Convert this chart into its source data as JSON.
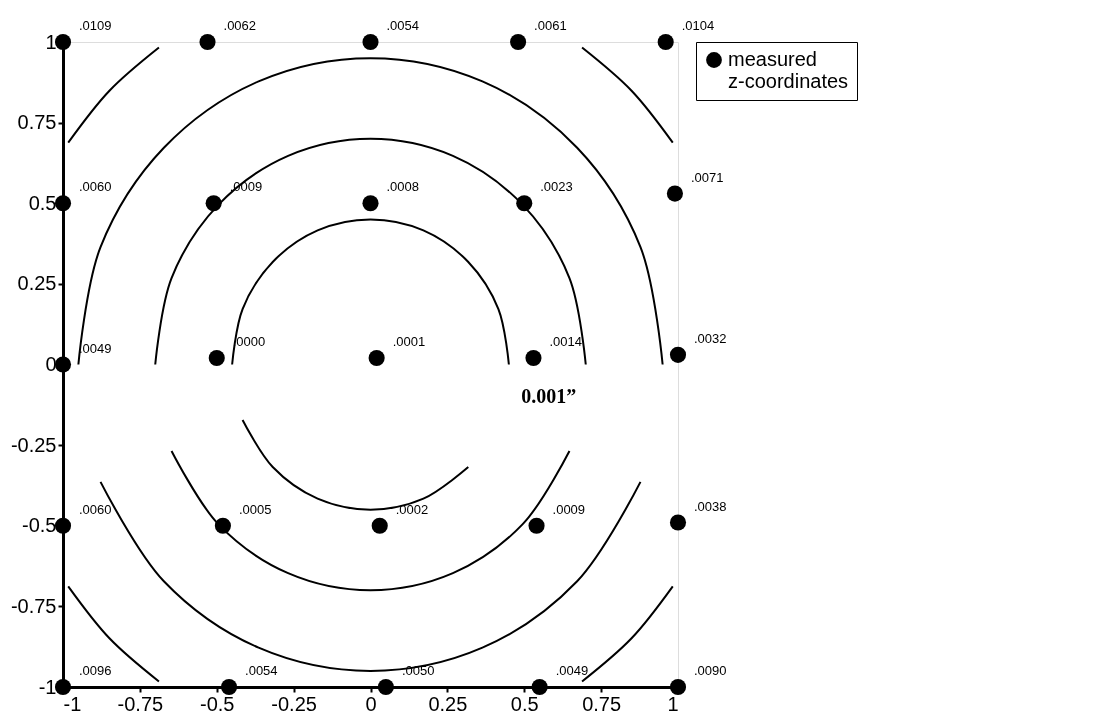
{
  "chart_data": {
    "type": "scatter",
    "legend": "right",
    "grid": false,
    "xlim": [
      -1,
      1
    ],
    "ylim": [
      -1,
      1
    ],
    "xticks": [
      -1,
      -0.75,
      -0.5,
      -0.25,
      0,
      0.25,
      0.5,
      0.75,
      1
    ],
    "yticks": [
      -1,
      -0.75,
      -0.5,
      -0.25,
      0,
      0.25,
      0.5,
      0.75,
      1
    ],
    "annotations": [
      "0.001”",
      {
        "text": ".0109",
        "x": -1,
        "y": 1
      },
      {
        "text": ".0062",
        "x": -0.53,
        "y": 1
      },
      {
        "text": ".0054",
        "x": 0,
        "y": 1
      },
      {
        "text": ".0061",
        "x": 0.48,
        "y": 1
      },
      {
        "text": ".0104",
        "x": 0.96,
        "y": 1
      },
      {
        "text": ".0060",
        "x": -1,
        "y": 0.5
      },
      {
        "text": ".0009",
        "x": -0.51,
        "y": 0.5
      },
      {
        "text": ".0008",
        "x": 0,
        "y": 0.5
      },
      {
        "text": ".0023",
        "x": 0.5,
        "y": 0.5
      },
      {
        "text": ".0071",
        "x": 0.99,
        "y": 0.53
      },
      {
        "text": ".0049",
        "x": -1,
        "y": 0
      },
      {
        "text": ".0000",
        "x": -0.5,
        "y": 0.02
      },
      {
        "text": ".0001",
        "x": 0.02,
        "y": 0.02
      },
      {
        "text": ".0014",
        "x": 0.53,
        "y": 0.02
      },
      {
        "text": ".0032",
        "x": 1,
        "y": 0.03
      },
      {
        "text": ".0060",
        "x": -1,
        "y": -0.5
      },
      {
        "text": ".0005",
        "x": -0.48,
        "y": -0.5
      },
      {
        "text": ".0002",
        "x": 0.03,
        "y": -0.5
      },
      {
        "text": ".0009",
        "x": 0.54,
        "y": -0.5
      },
      {
        "text": ".0038",
        "x": 1,
        "y": -0.49
      },
      {
        "text": ".0096",
        "x": -1,
        "y": -1
      },
      {
        "text": ".0054",
        "x": -0.46,
        "y": -1
      },
      {
        "text": ".0050",
        "x": 0.05,
        "y": -1
      },
      {
        "text": ".0049",
        "x": 0.55,
        "y": -1
      },
      {
        "text": ".0090",
        "x": 1,
        "y": -1
      }
    ],
    "series": [
      {
        "name": "measured z-coordinates",
        "marker": "circle",
        "color": "#000000",
        "x": [
          -1,
          -0.53,
          0,
          0.48,
          0.96,
          -1,
          -0.51,
          0,
          0.5,
          0.99,
          -1,
          -0.5,
          0.02,
          0.53,
          1,
          -1,
          -0.48,
          0.03,
          0.54,
          1,
          -1,
          -0.46,
          0.05,
          0.55,
          1
        ],
        "values": [
          1,
          1,
          1,
          1,
          1,
          0.5,
          0.5,
          0.5,
          0.5,
          0.53,
          0,
          0.02,
          0.02,
          0.02,
          0.03,
          -0.5,
          -0.5,
          -0.5,
          -0.5,
          -0.49,
          -1,
          -1,
          -1,
          -1,
          -1
        ]
      },
      {
        "type": "line",
        "marker": "none",
        "color": "#000000",
        "x": [
          -0.45,
          -0.416,
          -0.318,
          -0.172,
          0,
          0.172,
          0.318,
          0.416,
          0.45
        ],
        "values": [
          0,
          0.172,
          0.318,
          0.416,
          0.45,
          0.416,
          0.318,
          0.172,
          0
        ]
      },
      {
        "type": "line",
        "marker": "none",
        "color": "#000000",
        "x": [
          -0.416,
          -0.318,
          -0.172,
          0,
          0.172,
          0.318
        ],
        "values": [
          -0.172,
          -0.318,
          -0.416,
          -0.45,
          -0.416,
          -0.318
        ]
      },
      {
        "type": "line",
        "marker": "none",
        "color": "#000000",
        "x": [
          -0.7,
          -0.647,
          -0.495,
          -0.268,
          0,
          0.268,
          0.495,
          0.647,
          0.7
        ],
        "values": [
          0,
          0.268,
          0.495,
          0.647,
          0.7,
          0.647,
          0.495,
          0.268,
          0
        ]
      },
      {
        "type": "line",
        "marker": "none",
        "color": "#000000",
        "x": [
          -0.647,
          -0.495,
          -0.268,
          0,
          0.268,
          0.495,
          0.647
        ],
        "values": [
          -0.268,
          -0.495,
          -0.647,
          -0.7,
          -0.647,
          -0.495,
          -0.268
        ]
      },
      {
        "type": "line",
        "marker": "none",
        "color": "#000000",
        "x": [
          -0.95,
          -0.878,
          -0.672,
          -0.364,
          0,
          0.364,
          0.672,
          0.878,
          0.95
        ],
        "values": [
          0,
          0.364,
          0.672,
          0.878,
          0.95,
          0.878,
          0.672,
          0.364,
          0
        ]
      },
      {
        "type": "line",
        "marker": "none",
        "color": "#000000",
        "x": [
          -0.878,
          -0.672,
          -0.364,
          0,
          0.364,
          0.672,
          0.878
        ],
        "values": [
          -0.364,
          -0.672,
          -0.878,
          -0.95,
          -0.878,
          -0.672,
          -0.364
        ]
      },
      {
        "type": "line",
        "marker": "none",
        "color": "#000000",
        "x": [
          0.688,
          0.849,
          0.983
        ],
        "values": [
          0.983,
          0.849,
          0.688
        ]
      },
      {
        "type": "line",
        "marker": "none",
        "color": "#000000",
        "x": [
          -0.983,
          -0.849,
          -0.688
        ],
        "values": [
          0.688,
          0.849,
          0.983
        ]
      },
      {
        "type": "line",
        "marker": "none",
        "color": "#000000",
        "x": [
          -0.983,
          -0.849,
          -0.688
        ],
        "values": [
          -0.688,
          -0.849,
          -0.983
        ]
      },
      {
        "type": "line",
        "marker": "none",
        "color": "#000000",
        "x": [
          0.688,
          0.849,
          0.983
        ],
        "values": [
          -0.983,
          -0.849,
          -0.688
        ]
      }
    ]
  }
}
